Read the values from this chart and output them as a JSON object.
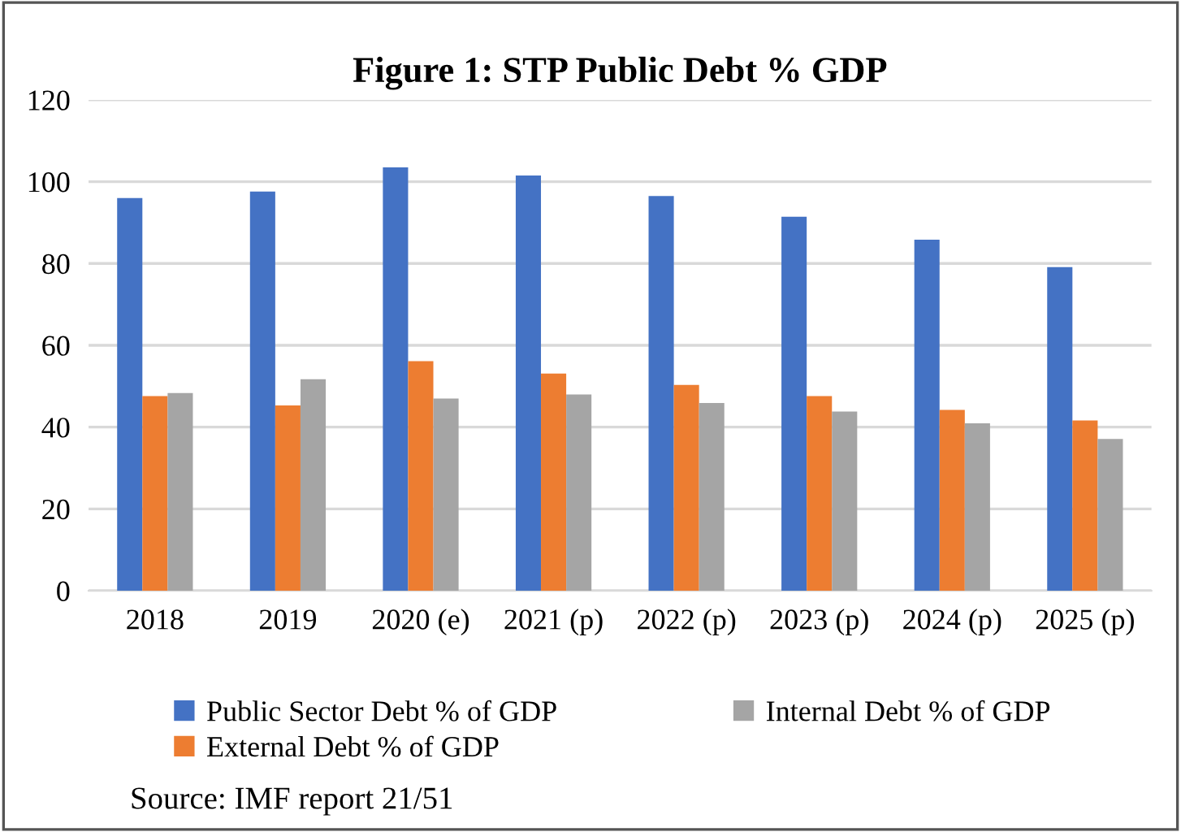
{
  "chart_data": {
    "type": "bar",
    "title": "Figure 1: STP Public Debt % GDP",
    "categories": [
      "2018",
      "2019",
      "2020 (e)",
      "2021 (p)",
      "2022 (p)",
      "2023 (p)",
      "2024 (p)",
      "2025 (p)"
    ],
    "series": [
      {
        "name": "Public Sector Debt % of GDP",
        "color": "#4472c4",
        "values": [
          96.0,
          97.6,
          103.5,
          101.5,
          96.5,
          91.4,
          85.8,
          79.1
        ]
      },
      {
        "name": "External Debt % of GDP",
        "color": "#ed7d31",
        "values": [
          47.6,
          45.3,
          56.1,
          53.1,
          50.3,
          47.6,
          44.2,
          41.6
        ]
      },
      {
        "name": "Internal Debt % of GDP",
        "color": "#a5a5a5",
        "values": [
          48.3,
          51.7,
          47.0,
          48.0,
          45.9,
          43.8,
          40.9,
          37.1
        ]
      }
    ],
    "ylim": [
      0,
      120
    ],
    "yticks": [
      0,
      20,
      40,
      60,
      80,
      100,
      120
    ],
    "grid": "y",
    "legend": "bottom",
    "annotations": [
      "Source: IMF report 21/51"
    ]
  }
}
